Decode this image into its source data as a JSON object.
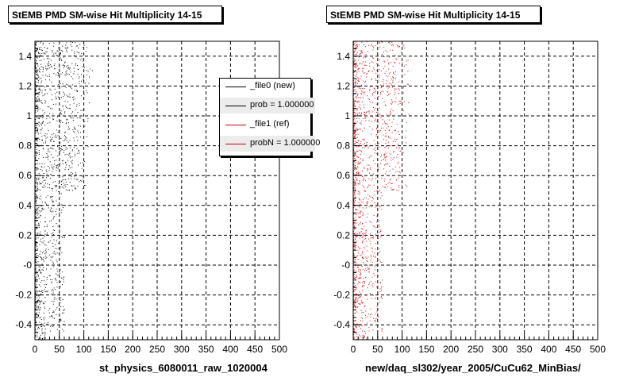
{
  "panels": [
    {
      "title": "StEMB PMD SM-wise Hit Multiplicity 14-15",
      "xlabel": "st_physics_6080011_raw_1020004",
      "marker_color": "#000000"
    },
    {
      "title": "StEMB PMD SM-wise Hit Multiplicity 14-15",
      "xlabel": "new/daq_sl302/year_2005/CuCu62_MinBias/",
      "marker_color": "#cc0000"
    }
  ],
  "legend": [
    {
      "label": "_file0 (new)",
      "color": "#000000"
    },
    {
      "label": "prob = 1.000000",
      "color": "#000000"
    },
    {
      "label": "_file1 (ref)",
      "color": "#cc0000"
    },
    {
      "label": "probN = 1.000000",
      "color": "#cc0000"
    }
  ],
  "chart_data": [
    {
      "type": "scatter",
      "title": "StEMB PMD SM-wise Hit Multiplicity 14-15",
      "xlabel": "st_physics_6080011_raw_1020004",
      "ylabel": "",
      "xlim": [
        0,
        500
      ],
      "ylim": [
        -0.5,
        1.5
      ],
      "x_ticks": [
        0,
        50,
        100,
        150,
        200,
        250,
        300,
        350,
        400,
        450,
        500
      ],
      "y_ticks": [
        -0.4,
        -0.2,
        0,
        0.2,
        0.4,
        0.6,
        0.8,
        1,
        1.2,
        1.4
      ],
      "y_tick_labels": [
        "-0.4",
        "-0.2",
        "-0",
        "0.2",
        "0.4",
        "0.6",
        "0.8",
        "1",
        "1.2",
        "1.4"
      ],
      "grid": true,
      "series": [
        {
          "name": "_file0 (new)",
          "color": "#000000",
          "x_range": [
            0,
            120
          ],
          "y_range": [
            -0.5,
            1.5
          ]
        }
      ]
    },
    {
      "type": "scatter",
      "title": "StEMB PMD SM-wise Hit Multiplicity 14-15",
      "xlabel": "new/daq_sl302/year_2005/CuCu62_MinBias/",
      "ylabel": "",
      "xlim": [
        0,
        500
      ],
      "ylim": [
        -0.5,
        1.5
      ],
      "x_ticks": [
        0,
        50,
        100,
        150,
        200,
        250,
        300,
        350,
        400,
        450,
        500
      ],
      "y_ticks": [
        -0.4,
        -0.2,
        0,
        0.2,
        0.4,
        0.6,
        0.8,
        1,
        1.2,
        1.4
      ],
      "y_tick_labels": [
        "-0.4",
        "-0.2",
        "-0",
        "0.2",
        "0.4",
        "0.6",
        "0.8",
        "1",
        "1.2",
        "1.4"
      ],
      "grid": true,
      "series": [
        {
          "name": "_file1 (ref)",
          "color": "#cc0000",
          "x_range": [
            0,
            120
          ],
          "y_range": [
            -0.5,
            1.5
          ]
        }
      ]
    }
  ]
}
